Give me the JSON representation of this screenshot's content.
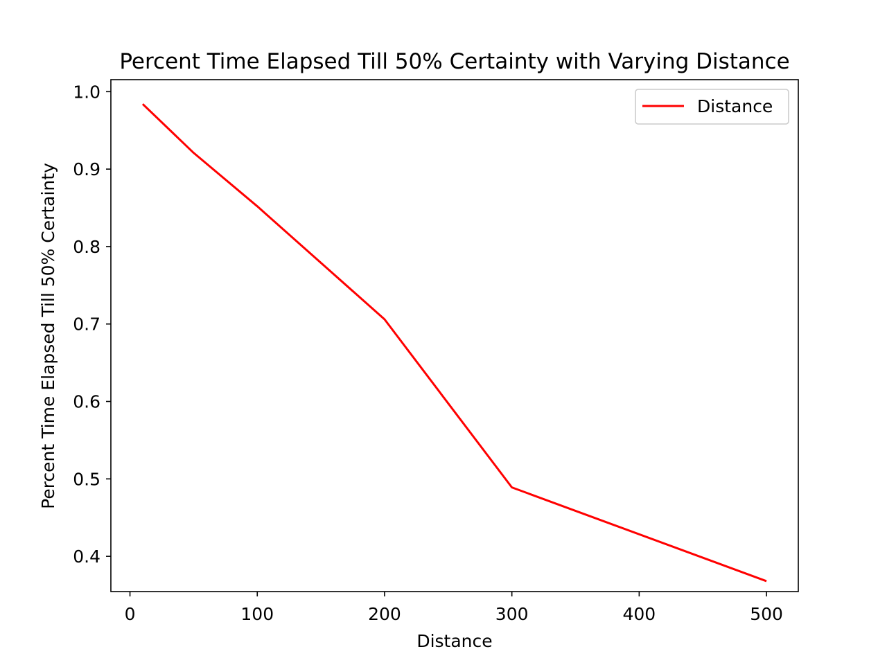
{
  "chart_data": {
    "type": "line",
    "title": "Percent Time Elapsed Till 50% Certainty with Varying Distance",
    "xlabel": "Distance",
    "ylabel": "Percent Time Elapsed Till 50% Certainty",
    "xlim": [
      -15,
      525
    ],
    "ylim": [
      0.3545,
      1.0155
    ],
    "xticks": [
      0,
      100,
      200,
      300,
      400,
      500
    ],
    "xtick_labels": [
      "0",
      "100",
      "200",
      "300",
      "400",
      "500"
    ],
    "yticks": [
      0.4,
      0.5,
      0.6,
      0.7,
      0.8,
      0.9,
      1.0
    ],
    "ytick_labels": [
      "0.4",
      "0.5",
      "0.6",
      "0.7",
      "0.8",
      "0.9",
      "1.0"
    ],
    "grid": false,
    "legend_position": "top-right",
    "series": [
      {
        "name": "Distance",
        "color": "#ff0000",
        "x": [
          10,
          50,
          100,
          200,
          300,
          500
        ],
        "y": [
          0.984,
          0.921,
          0.852,
          0.706,
          0.489,
          0.368
        ]
      }
    ]
  }
}
